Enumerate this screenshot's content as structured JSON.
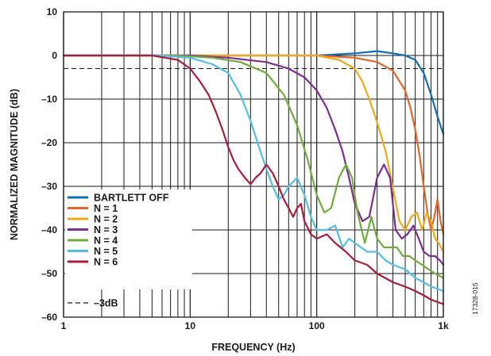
{
  "chart_data": {
    "type": "line",
    "x_scale": "log",
    "xlabel": "FREQUENCY (Hz)",
    "ylabel": "NORMALIZED MAGNITUDE (dB)",
    "xlim": [
      1,
      1000
    ],
    "ylim": [
      -60,
      10
    ],
    "x_ticks": [
      {
        "value": 1,
        "label": "1"
      },
      {
        "value": 10,
        "label": "10"
      },
      {
        "value": 100,
        "label": "100"
      },
      {
        "value": 1000,
        "label": "1k"
      }
    ],
    "y_ticks": [
      {
        "value": 10,
        "label": "10"
      },
      {
        "value": 0,
        "label": "0"
      },
      {
        "value": -10,
        "label": "–10"
      },
      {
        "value": -20,
        "label": "–20"
      },
      {
        "value": -30,
        "label": "–30"
      },
      {
        "value": -40,
        "label": "–40"
      },
      {
        "value": -50,
        "label": "–50"
      },
      {
        "value": -60,
        "label": "–60"
      }
    ],
    "grid": true,
    "legend_position": "bottom-left",
    "reference_line": {
      "name": "–3dB",
      "y": -3,
      "style": "dashed",
      "color": "#1a1a1a"
    },
    "series": [
      {
        "name": "BARTLETT OFF",
        "color": "#0f6fb3",
        "x": [
          1,
          10,
          100,
          200,
          300,
          400,
          500,
          600,
          700,
          800,
          900,
          1000
        ],
        "y": [
          0,
          0,
          0,
          0.5,
          1,
          0.5,
          0,
          -1,
          -4,
          -9,
          -14,
          -18
        ]
      },
      {
        "name": "N = 1",
        "color": "#e4652b",
        "x": [
          1,
          10,
          100,
          200,
          300,
          400,
          500,
          550,
          600,
          650,
          700,
          750,
          800,
          850,
          900,
          950,
          1000
        ],
        "y": [
          0,
          0,
          0,
          -0.5,
          -1.5,
          -3.5,
          -8,
          -12,
          -17,
          -23,
          -30,
          -36,
          -40,
          -37,
          -33,
          -38,
          -41
        ]
      },
      {
        "name": "N = 2",
        "color": "#f0a81c",
        "x": [
          1,
          10,
          100,
          150,
          200,
          230,
          260,
          290,
          320,
          350,
          380,
          410,
          450,
          500,
          560,
          620,
          680,
          740,
          800,
          860,
          920,
          1000
        ],
        "y": [
          0,
          0,
          0,
          -1,
          -3,
          -6,
          -10,
          -14,
          -18,
          -22,
          -27,
          -32,
          -38,
          -40,
          -37,
          -36,
          -40,
          -36,
          -38,
          -42,
          -43,
          -45
        ]
      },
      {
        "name": "N = 3",
        "color": "#7d2d8f",
        "x": [
          1,
          10,
          20,
          40,
          60,
          80,
          100,
          120,
          140,
          160,
          180,
          200,
          230,
          260,
          300,
          340,
          380,
          420,
          470,
          520,
          580,
          640,
          700,
          780,
          860,
          940,
          1000
        ],
        "y": [
          0,
          0,
          -0.5,
          -1.5,
          -3,
          -5,
          -8,
          -12,
          -17,
          -22,
          -28,
          -34,
          -38,
          -37,
          -28,
          -25,
          -28,
          -40,
          -42,
          -41,
          -39,
          -42,
          -45,
          -46,
          -46,
          -47,
          -48
        ]
      },
      {
        "name": "N = 4",
        "color": "#70ac3c",
        "x": [
          1,
          8,
          15,
          25,
          40,
          55,
          70,
          85,
          100,
          115,
          130,
          150,
          170,
          190,
          210,
          240,
          270,
          300,
          340,
          380,
          430,
          480,
          540,
          600,
          680,
          760,
          860,
          1000
        ],
        "y": [
          0,
          0,
          -0.5,
          -1.5,
          -4,
          -9,
          -16,
          -24,
          -32,
          -36,
          -35,
          -28,
          -25,
          -28,
          -36,
          -43,
          -37,
          -42,
          -44,
          -44,
          -44,
          -46,
          -46,
          -47,
          -48,
          -49,
          -50,
          -51
        ]
      },
      {
        "name": "N = 5",
        "color": "#55bde6",
        "x": [
          1,
          6,
          10,
          15,
          20,
          25,
          30,
          35,
          40,
          45,
          50,
          55,
          60,
          70,
          80,
          90,
          100,
          120,
          140,
          160,
          180,
          200,
          250,
          300,
          350,
          400,
          500,
          600,
          700,
          800,
          1000
        ],
        "y": [
          0,
          0,
          -0.5,
          -2,
          -4,
          -9,
          -15,
          -21,
          -26,
          -30,
          -33,
          -32,
          -30,
          -28,
          -32,
          -37,
          -40,
          -40,
          -39,
          -44,
          -42,
          -43,
          -45,
          -45,
          -47,
          -48,
          -49,
          -51,
          -52,
          -53,
          -54
        ]
      },
      {
        "name": "N = 6",
        "color": "#a81c3c",
        "x": [
          1,
          5,
          8,
          10,
          12,
          14,
          16,
          18,
          20,
          22,
          24,
          27,
          30,
          33,
          36,
          40,
          45,
          50,
          55,
          60,
          65,
          70,
          75,
          80,
          90,
          100,
          120,
          140,
          170,
          200,
          250,
          300,
          400,
          500,
          600,
          700,
          800,
          1000
        ],
        "y": [
          0,
          0,
          -1,
          -3,
          -6,
          -9,
          -13,
          -17,
          -21,
          -24,
          -26,
          -28,
          -29.5,
          -28,
          -27,
          -25,
          -27,
          -30,
          -33,
          -35,
          -37,
          -35,
          -34,
          -38,
          -41,
          -42,
          -41,
          -43,
          -45,
          -47,
          -48,
          -50,
          -52,
          -53,
          -54,
          -55,
          -56,
          -57
        ]
      }
    ]
  },
  "figure_id": "17328-015"
}
